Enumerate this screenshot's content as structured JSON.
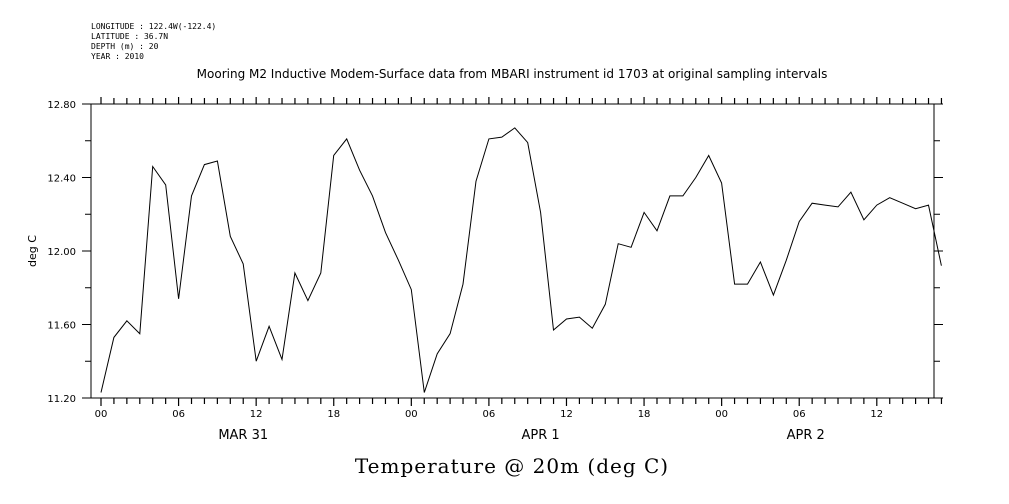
{
  "header": {
    "longitude": "LONGITUDE : 122.4W(-122.4)",
    "latitude": "LATITUDE : 36.7N",
    "depth": "DEPTH (m) : 20",
    "year": "YEAR : 2010"
  },
  "chart_data": {
    "type": "line",
    "title": "Mooring M2 Inductive Modem-Surface data from MBARI instrument id 1703 at original sampling intervals",
    "ylabel": "deg C",
    "footer": "Temperature @ 20m (deg C)",
    "ylim": [
      11.2,
      12.8
    ],
    "yticks": [
      "11.20",
      "11.60",
      "12.00",
      "12.40",
      "12.80"
    ],
    "xlim": [
      0,
      65
    ],
    "xunit": "hours since 00 MAR 31 2010",
    "xticks": [
      {
        "x": 0,
        "label": "00"
      },
      {
        "x": 6,
        "label": "06"
      },
      {
        "x": 12,
        "label": "12"
      },
      {
        "x": 18,
        "label": "18"
      },
      {
        "x": 24,
        "label": "00"
      },
      {
        "x": 30,
        "label": "06"
      },
      {
        "x": 36,
        "label": "12"
      },
      {
        "x": 42,
        "label": "18"
      },
      {
        "x": 48,
        "label": "00"
      },
      {
        "x": 54,
        "label": "06"
      },
      {
        "x": 60,
        "label": "12"
      }
    ],
    "day_labels": [
      {
        "x": 11,
        "label": "MAR 31"
      },
      {
        "x": 34,
        "label": "APR  1"
      },
      {
        "x": 54.5,
        "label": "APR  2"
      }
    ],
    "grid": false,
    "series": [
      {
        "x": [
          0,
          1,
          2,
          3,
          4,
          5,
          6,
          7,
          8,
          9,
          10,
          11,
          12,
          13,
          14,
          15,
          16,
          17,
          18,
          19,
          20,
          21,
          22,
          23,
          24,
          25,
          26,
          27,
          28,
          29,
          30,
          31,
          32,
          33,
          34,
          35,
          36,
          37,
          38,
          39,
          40,
          41,
          42,
          43,
          44,
          45,
          46,
          47,
          48,
          49,
          50,
          51,
          52,
          53,
          54,
          55,
          56,
          57,
          58,
          59,
          60,
          61,
          62,
          63,
          64,
          65
        ],
        "values": [
          11.23,
          11.53,
          11.62,
          11.55,
          12.46,
          12.36,
          11.74,
          12.3,
          12.47,
          12.49,
          12.08,
          11.93,
          11.4,
          11.59,
          11.41,
          11.88,
          11.73,
          11.88,
          12.52,
          12.61,
          12.44,
          12.3,
          12.1,
          11.95,
          11.79,
          11.23,
          11.44,
          11.55,
          11.82,
          12.38,
          12.61,
          12.62,
          12.67,
          12.59,
          12.21,
          11.57,
          11.63,
          11.64,
          11.58,
          11.71,
          12.04,
          12.02,
          12.21,
          12.11,
          12.3,
          12.3,
          12.4,
          12.52,
          12.37,
          11.82,
          11.82,
          11.94,
          11.76,
          11.95,
          12.16,
          12.26,
          12.25,
          12.24,
          12.32,
          12.17,
          12.25,
          12.29,
          12.26,
          12.23,
          12.25,
          11.92
        ]
      }
    ]
  }
}
